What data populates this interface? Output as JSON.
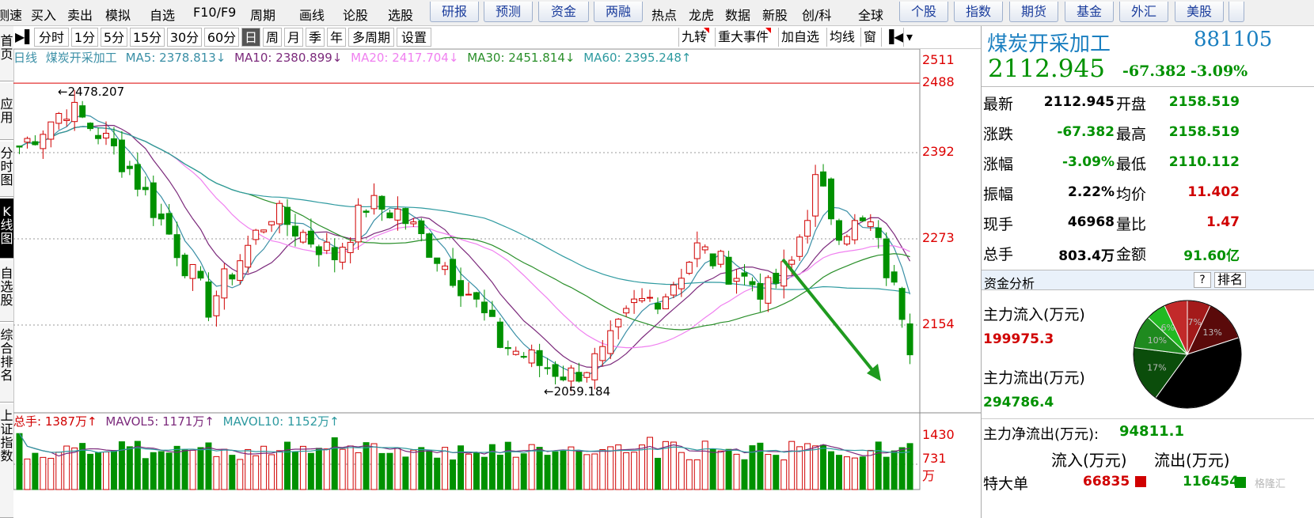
{
  "top_menu": {
    "items": [
      "测速",
      "买入",
      "卖出",
      "模拟",
      "自选",
      "F10/F9",
      "周期",
      "画线",
      "论股",
      "选股"
    ],
    "items2": [
      "研报",
      "预测",
      "资金",
      "两融"
    ],
    "items3": [
      "热点",
      "龙虎",
      "数据",
      "新股",
      "创/科",
      "全球"
    ],
    "market_tabs": [
      "个股",
      "指数",
      "期货",
      "基金",
      "外汇",
      "美股"
    ]
  },
  "left_tabs": [
    "首页",
    "应用",
    "分时图",
    "K线图",
    "自选股",
    "综合排名",
    "上证指数"
  ],
  "chart_toolbar": {
    "periods": [
      "分时",
      "1分",
      "5分",
      "15分",
      "30分",
      "60分",
      "日",
      "周",
      "月",
      "季",
      "年",
      "多周期",
      "设置"
    ],
    "active_period": "日",
    "right_buttons": [
      "九转",
      "重大事件",
      "加自选",
      "均线",
      "窗"
    ]
  },
  "ma_line": {
    "label1": "日线",
    "label2": "煤炭开采加工",
    "ma5": "MA5: 2378.813↓",
    "ma10": "MA10: 2380.899↓",
    "ma20": "MA20: 2417.704↓",
    "ma30": "MA30: 2451.814↓",
    "ma60": "MA60: 2395.248↑"
  },
  "vol_line": {
    "total": "总手: 1387万↑",
    "mavol5": "MAVOL5: 1171万↑",
    "mavol10": "MAVOL10: 1152万↑"
  },
  "price_axis": {
    "ticks": [
      "2511",
      "2488",
      "2392",
      "2273",
      "2154"
    ]
  },
  "vol_axis": {
    "ticks": [
      "1430",
      "731",
      "万"
    ]
  },
  "annotations": {
    "high": "2478.207",
    "low": "2059.184"
  },
  "quote": {
    "name": "煤炭开采加工",
    "code": "881105",
    "price": "2112.945",
    "change": "-67.382",
    "pct": "-3.09%",
    "rows": [
      {
        "l1": "最新",
        "v1": "2112.945",
        "l2": "开盘",
        "v2": "2158.519"
      },
      {
        "l1": "涨跌",
        "v1": "-67.382",
        "l2": "最高",
        "v2": "2158.519"
      },
      {
        "l1": "涨幅",
        "v1": "-3.09%",
        "l2": "最低",
        "v2": "2110.112"
      },
      {
        "l1": "振幅",
        "v1": "2.22%",
        "l2": "均价",
        "v2": "11.402"
      },
      {
        "l1": "现手",
        "v1": "46968",
        "l2": "量比",
        "v2": "1.47"
      },
      {
        "l1": "总手",
        "v1": "803.4万",
        "l2": "金额",
        "v2": "91.60亿"
      }
    ]
  },
  "fund": {
    "title": "资金分析",
    "q": "?",
    "rank": "排名",
    "inflow_label": "主力流入(万元)",
    "inflow": "199975.3",
    "outflow_label": "主力流出(万元)",
    "outflow": "294786.4",
    "net_label": "主力净流出(万元):",
    "net": "94811.1",
    "col_in": "流入(万元)",
    "col_out": "流出(万元)",
    "row_label": "特大单",
    "row_in": "66835",
    "row_out": "116454",
    "pie": [
      {
        "label": "7%",
        "value": 7,
        "color": "#a31a1a"
      },
      {
        "label": "13%",
        "value": 13,
        "color": "#5a0a0a"
      },
      {
        "label": "",
        "value": 40,
        "color": "#000000"
      },
      {
        "label": "17%",
        "value": 17,
        "color": "#0b4d0b"
      },
      {
        "label": "10%",
        "value": 10,
        "color": "#1f8a1f"
      },
      {
        "label": "6%",
        "value": 6,
        "color": "#22b922"
      },
      {
        "label": "",
        "value": 7,
        "color": "#c22a2a"
      }
    ]
  },
  "watermark": "格隆汇",
  "colors": {
    "up": "#d00000",
    "down": "#009100",
    "ma5": "#3a8fa6",
    "ma10": "#7c2a7c",
    "ma20": "#f080f0",
    "ma30": "#2a8f2a",
    "ma60": "#2e9aa0"
  }
}
